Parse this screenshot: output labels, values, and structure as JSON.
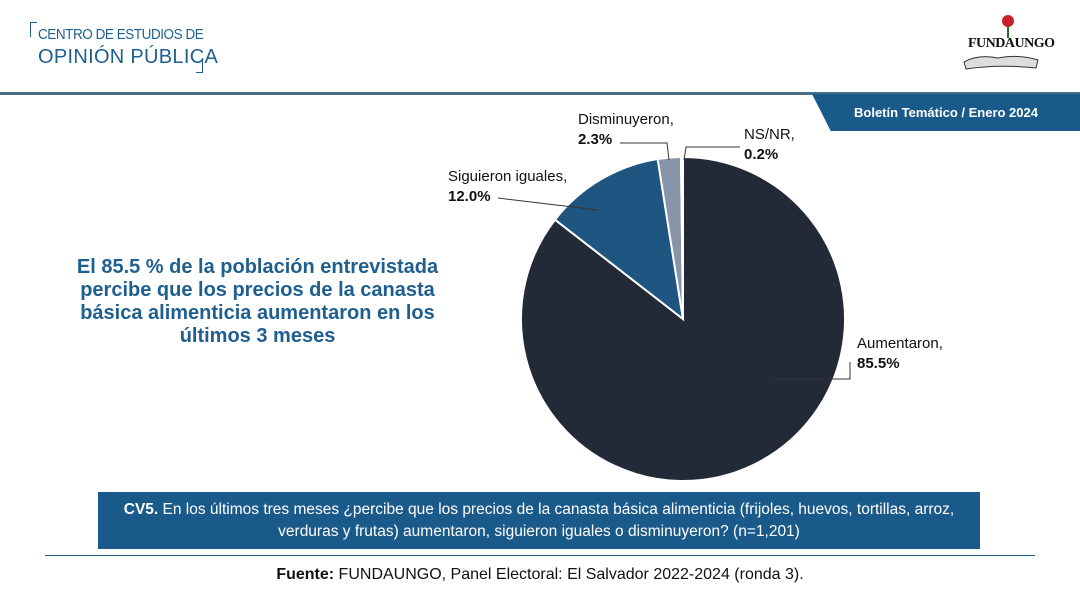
{
  "header": {
    "org_line1": "CENTRO DE ESTUDIOS DE",
    "org_line2": "OPINIÓN PÚBLICA",
    "logo_text": "FUNDAUNGO",
    "bulletin": "Boletín Temático / Enero 2024"
  },
  "headline": "El 85.5 % de la población entrevistada percibe que los precios de la canasta básica alimenticia aumentaron en los últimos 3 meses",
  "chart_data": {
    "type": "pie",
    "title": "",
    "start": "top, clockwise",
    "slices": [
      {
        "label": "Aumentaron,",
        "value": 85.5,
        "display": "85.5%",
        "color": "#222a37"
      },
      {
        "label": "Siguieron iguales,",
        "value": 12.0,
        "display": "12.0%",
        "color": "#1f5581"
      },
      {
        "label": "Disminuyeron,",
        "value": 2.3,
        "display": "2.3%",
        "color": "#8794aa"
      },
      {
        "label": "NS/NR,",
        "value": 0.2,
        "display": "0.2%",
        "color": "#c9d3e2"
      }
    ]
  },
  "question": {
    "code": "CV5.",
    "text": " En los últimos tres meses ¿percibe que los precios de la canasta básica alimenticia (frijoles, huevos, tortillas, arroz, verduras y frutas) aumentaron, siguieron iguales o disminuyeron? (n=1,201)"
  },
  "source": {
    "label": "Fuente:",
    "text": " FUNDAUNGO, Panel Electoral: El Salvador 2022-2024 (ronda 3)."
  }
}
